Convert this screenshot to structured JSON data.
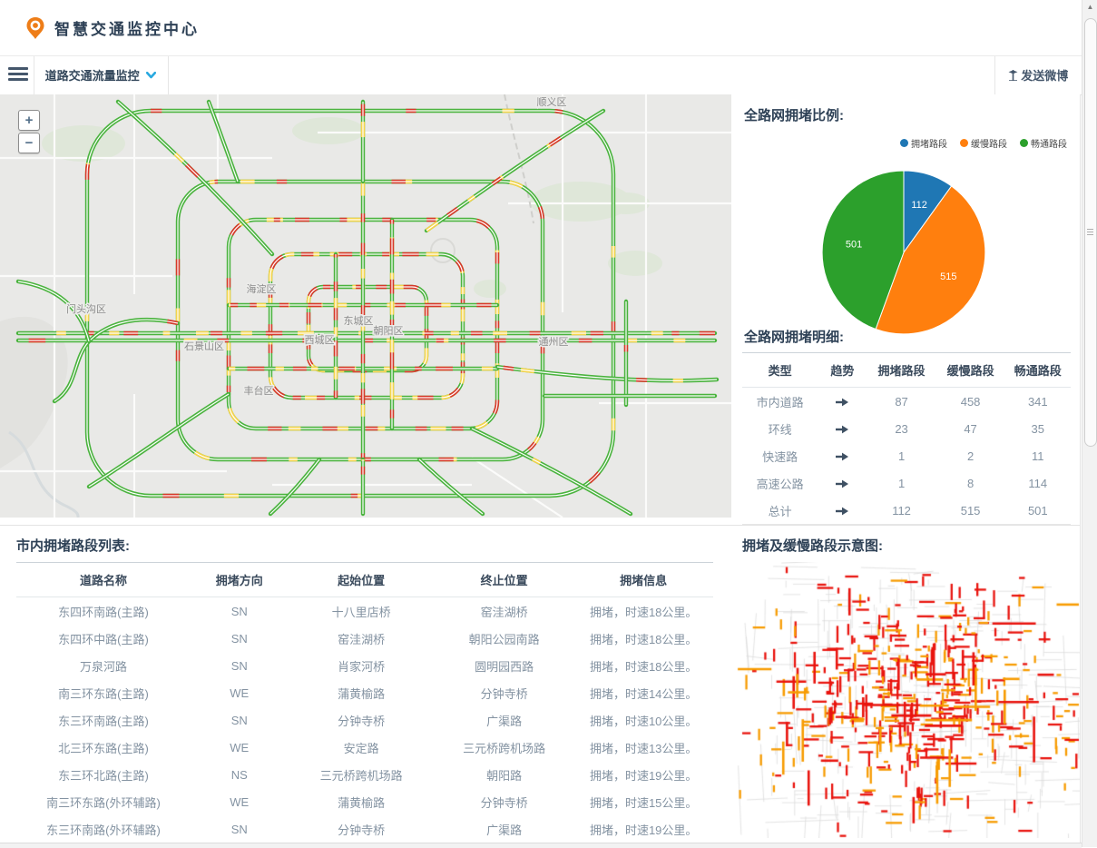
{
  "header": {
    "title": "智慧交通监控中心"
  },
  "toolbar": {
    "menu_label": "道路交通流量监控",
    "send_weibo_label": "发送微博"
  },
  "map_panel": {
    "zoom_in": "+",
    "zoom_out": "−",
    "district_labels": [
      "顺义区",
      "门头沟区",
      "海淀区",
      "石景山区",
      "西城区",
      "东城区",
      "朝阳区",
      "丰台区",
      "通州区"
    ],
    "traffic_colors": {
      "congested": "#d8382a",
      "slow": "#f5d44c",
      "smooth": "#4ab33e"
    }
  },
  "pie_section": {
    "title": "全路网拥堵比例:"
  },
  "chart_data": {
    "type": "pie",
    "title": "全路网拥堵比例",
    "labels": [
      "拥堵路段",
      "缓慢路段",
      "畅通路段"
    ],
    "values": [
      112,
      515,
      501
    ],
    "colors": [
      "#1f77b4",
      "#ff7f0e",
      "#2ca02c"
    ],
    "legend_position": "top-right",
    "start_angle_deg": 0,
    "direction": "clockwise"
  },
  "detail_section": {
    "title": "全路网拥堵明细:",
    "headers": [
      "类型",
      "趋势",
      "拥堵路段",
      "缓慢路段",
      "畅通路段"
    ],
    "rows": [
      {
        "type": "市内道路",
        "trend": "flat",
        "congested": "87",
        "slow": "458",
        "smooth": "341"
      },
      {
        "type": "环线",
        "trend": "flat",
        "congested": "23",
        "slow": "47",
        "smooth": "35"
      },
      {
        "type": "快速路",
        "trend": "flat",
        "congested": "1",
        "slow": "2",
        "smooth": "11"
      },
      {
        "type": "高速公路",
        "trend": "flat",
        "congested": "1",
        "slow": "8",
        "smooth": "114"
      },
      {
        "type": "总计",
        "trend": "flat",
        "congested": "112",
        "slow": "515",
        "smooth": "501"
      }
    ]
  },
  "list_section": {
    "title": "市内拥堵路段列表:",
    "headers": [
      "道路名称",
      "拥堵方向",
      "起始位置",
      "终止位置",
      "拥堵信息"
    ],
    "rows": [
      {
        "road": "东四环南路(主路)",
        "dir": "SN",
        "start": "十八里店桥",
        "end": "窑洼湖桥",
        "info": "拥堵，时速18公里。"
      },
      {
        "road": "东四环中路(主路)",
        "dir": "SN",
        "start": "窑洼湖桥",
        "end": "朝阳公园南路",
        "info": "拥堵，时速18公里。"
      },
      {
        "road": "万泉河路",
        "dir": "SN",
        "start": "肖家河桥",
        "end": "圆明园西路",
        "info": "拥堵，时速18公里。"
      },
      {
        "road": "南三环东路(主路)",
        "dir": "WE",
        "start": "蒲黄榆路",
        "end": "分钟寺桥",
        "info": "拥堵，时速14公里。"
      },
      {
        "road": "东三环南路(主路)",
        "dir": "SN",
        "start": "分钟寺桥",
        "end": "广渠路",
        "info": "拥堵，时速10公里。"
      },
      {
        "road": "北三环东路(主路)",
        "dir": "WE",
        "start": "安定路",
        "end": "三元桥跨机场路",
        "info": "拥堵，时速13公里。"
      },
      {
        "road": "东三环北路(主路)",
        "dir": "NS",
        "start": "三元桥跨机场路",
        "end": "朝阳路",
        "info": "拥堵，时速19公里。"
      },
      {
        "road": "南三环东路(外环辅路)",
        "dir": "WE",
        "start": "蒲黄榆路",
        "end": "分钟寺桥",
        "info": "拥堵，时速15公里。"
      },
      {
        "road": "东三环南路(外环辅路)",
        "dir": "SN",
        "start": "分钟寺桥",
        "end": "广渠路",
        "info": "拥堵，时速19公里。"
      }
    ]
  },
  "diagram_section": {
    "title": "拥堵及缓慢路段示意图:"
  }
}
